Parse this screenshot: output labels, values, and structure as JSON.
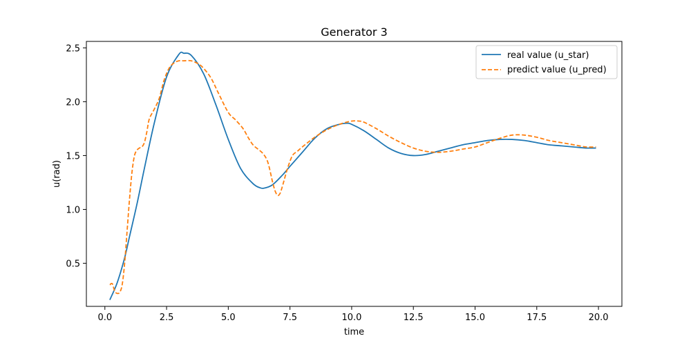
{
  "chart_data": {
    "type": "line",
    "title": "Generator 3",
    "xlabel": "time",
    "ylabel": "u(rad)",
    "xlim": [
      -0.75,
      20.95
    ],
    "ylim": [
      0.1,
      2.56
    ],
    "xticks": [
      0.0,
      2.5,
      5.0,
      7.5,
      10.0,
      12.5,
      15.0,
      17.5,
      20.0
    ],
    "xtick_labels": [
      "0.0",
      "2.5",
      "5.0",
      "7.5",
      "10.0",
      "12.5",
      "15.0",
      "17.5",
      "20.0"
    ],
    "yticks": [
      0.5,
      1.0,
      1.5,
      2.0,
      2.5
    ],
    "ytick_labels": [
      "0.5",
      "1.0",
      "1.5",
      "2.0",
      "2.5"
    ],
    "grid": false,
    "legend_position": "top-right",
    "series": [
      {
        "name": "real value (u_star)",
        "color": "#1f77b4",
        "style": "solid",
        "x": [
          0.2,
          0.5,
          0.8,
          1.0,
          1.3,
          1.6,
          2.0,
          2.5,
          3.0,
          3.2,
          3.5,
          4.0,
          4.5,
          5.0,
          5.5,
          6.0,
          6.3,
          6.5,
          6.8,
          7.2,
          7.5,
          8.0,
          8.5,
          9.0,
          9.5,
          9.8,
          10.0,
          10.5,
          11.0,
          11.5,
          12.0,
          12.5,
          13.0,
          13.5,
          14.0,
          14.5,
          15.0,
          15.5,
          16.0,
          16.5,
          17.0,
          17.5,
          18.0,
          18.5,
          19.0,
          19.5,
          19.9
        ],
        "y": [
          0.16,
          0.32,
          0.55,
          0.75,
          1.05,
          1.38,
          1.8,
          2.23,
          2.44,
          2.45,
          2.43,
          2.26,
          1.97,
          1.65,
          1.38,
          1.24,
          1.2,
          1.2,
          1.23,
          1.32,
          1.4,
          1.53,
          1.66,
          1.75,
          1.79,
          1.8,
          1.79,
          1.73,
          1.65,
          1.57,
          1.52,
          1.5,
          1.51,
          1.54,
          1.57,
          1.6,
          1.62,
          1.64,
          1.65,
          1.65,
          1.64,
          1.62,
          1.6,
          1.59,
          1.58,
          1.57,
          1.57
        ]
      },
      {
        "name": "predict value (u_pred)",
        "color": "#ff7f0e",
        "style": "dashed",
        "x": [
          0.2,
          0.3,
          0.4,
          0.5,
          0.6,
          0.7,
          0.8,
          0.9,
          1.0,
          1.1,
          1.2,
          1.3,
          1.4,
          1.5,
          1.6,
          1.7,
          1.8,
          2.0,
          2.2,
          2.4,
          2.6,
          2.8,
          3.0,
          3.2,
          3.5,
          3.8,
          4.0,
          4.3,
          4.6,
          5.0,
          5.3,
          5.6,
          5.8,
          6.0,
          6.2,
          6.4,
          6.6,
          6.8,
          6.9,
          7.0,
          7.1,
          7.2,
          7.4,
          7.6,
          7.8,
          8.0,
          8.5,
          9.0,
          9.5,
          10.0,
          10.3,
          10.5,
          11.0,
          11.5,
          12.0,
          12.5,
          13.0,
          13.5,
          14.0,
          14.5,
          15.0,
          15.5,
          16.0,
          16.5,
          17.0,
          17.5,
          18.0,
          18.5,
          19.0,
          19.5,
          19.9
        ],
        "y": [
          0.3,
          0.31,
          0.24,
          0.22,
          0.23,
          0.3,
          0.5,
          0.8,
          1.1,
          1.35,
          1.5,
          1.55,
          1.57,
          1.58,
          1.62,
          1.72,
          1.84,
          1.93,
          2.03,
          2.2,
          2.31,
          2.36,
          2.38,
          2.38,
          2.38,
          2.35,
          2.31,
          2.22,
          2.08,
          1.9,
          1.83,
          1.75,
          1.67,
          1.6,
          1.56,
          1.52,
          1.44,
          1.25,
          1.17,
          1.13,
          1.15,
          1.22,
          1.38,
          1.5,
          1.54,
          1.58,
          1.67,
          1.74,
          1.79,
          1.82,
          1.82,
          1.81,
          1.75,
          1.68,
          1.62,
          1.57,
          1.54,
          1.53,
          1.54,
          1.56,
          1.58,
          1.62,
          1.66,
          1.69,
          1.69,
          1.67,
          1.64,
          1.62,
          1.6,
          1.58,
          1.58
        ]
      }
    ]
  }
}
